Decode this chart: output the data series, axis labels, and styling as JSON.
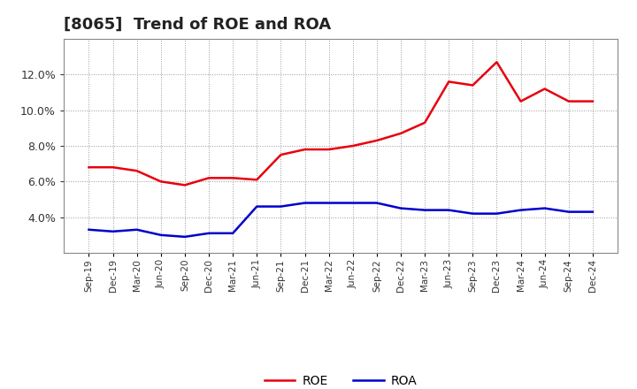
{
  "title": "[8065]  Trend of ROE and ROA",
  "x_labels": [
    "Sep-19",
    "Dec-19",
    "Mar-20",
    "Jun-20",
    "Sep-20",
    "Dec-20",
    "Mar-21",
    "Jun-21",
    "Sep-21",
    "Dec-21",
    "Mar-22",
    "Jun-22",
    "Sep-22",
    "Dec-22",
    "Mar-23",
    "Jun-23",
    "Sep-23",
    "Dec-23",
    "Mar-24",
    "Jun-24",
    "Sep-24",
    "Dec-24"
  ],
  "roe": [
    6.8,
    6.8,
    6.6,
    6.0,
    5.8,
    6.2,
    6.2,
    6.1,
    7.5,
    7.8,
    7.8,
    8.0,
    8.3,
    8.7,
    9.3,
    11.6,
    11.4,
    12.7,
    10.5,
    11.2,
    10.5,
    10.5
  ],
  "roa": [
    3.3,
    3.2,
    3.3,
    3.0,
    2.9,
    3.1,
    3.1,
    4.6,
    4.6,
    4.8,
    4.8,
    4.8,
    4.8,
    4.5,
    4.4,
    4.4,
    4.2,
    4.2,
    4.4,
    4.5,
    4.3,
    4.3
  ],
  "roe_color": "#e8000d",
  "roa_color": "#0000cd",
  "ylim": [
    2.0,
    14.0
  ],
  "yticks": [
    4.0,
    6.0,
    8.0,
    10.0,
    12.0
  ],
  "background_color": "#ffffff",
  "plot_bg_color": "#ffffff",
  "grid_color": "#999999",
  "title_fontsize": 13,
  "legend_fontsize": 10,
  "line_width": 1.8
}
